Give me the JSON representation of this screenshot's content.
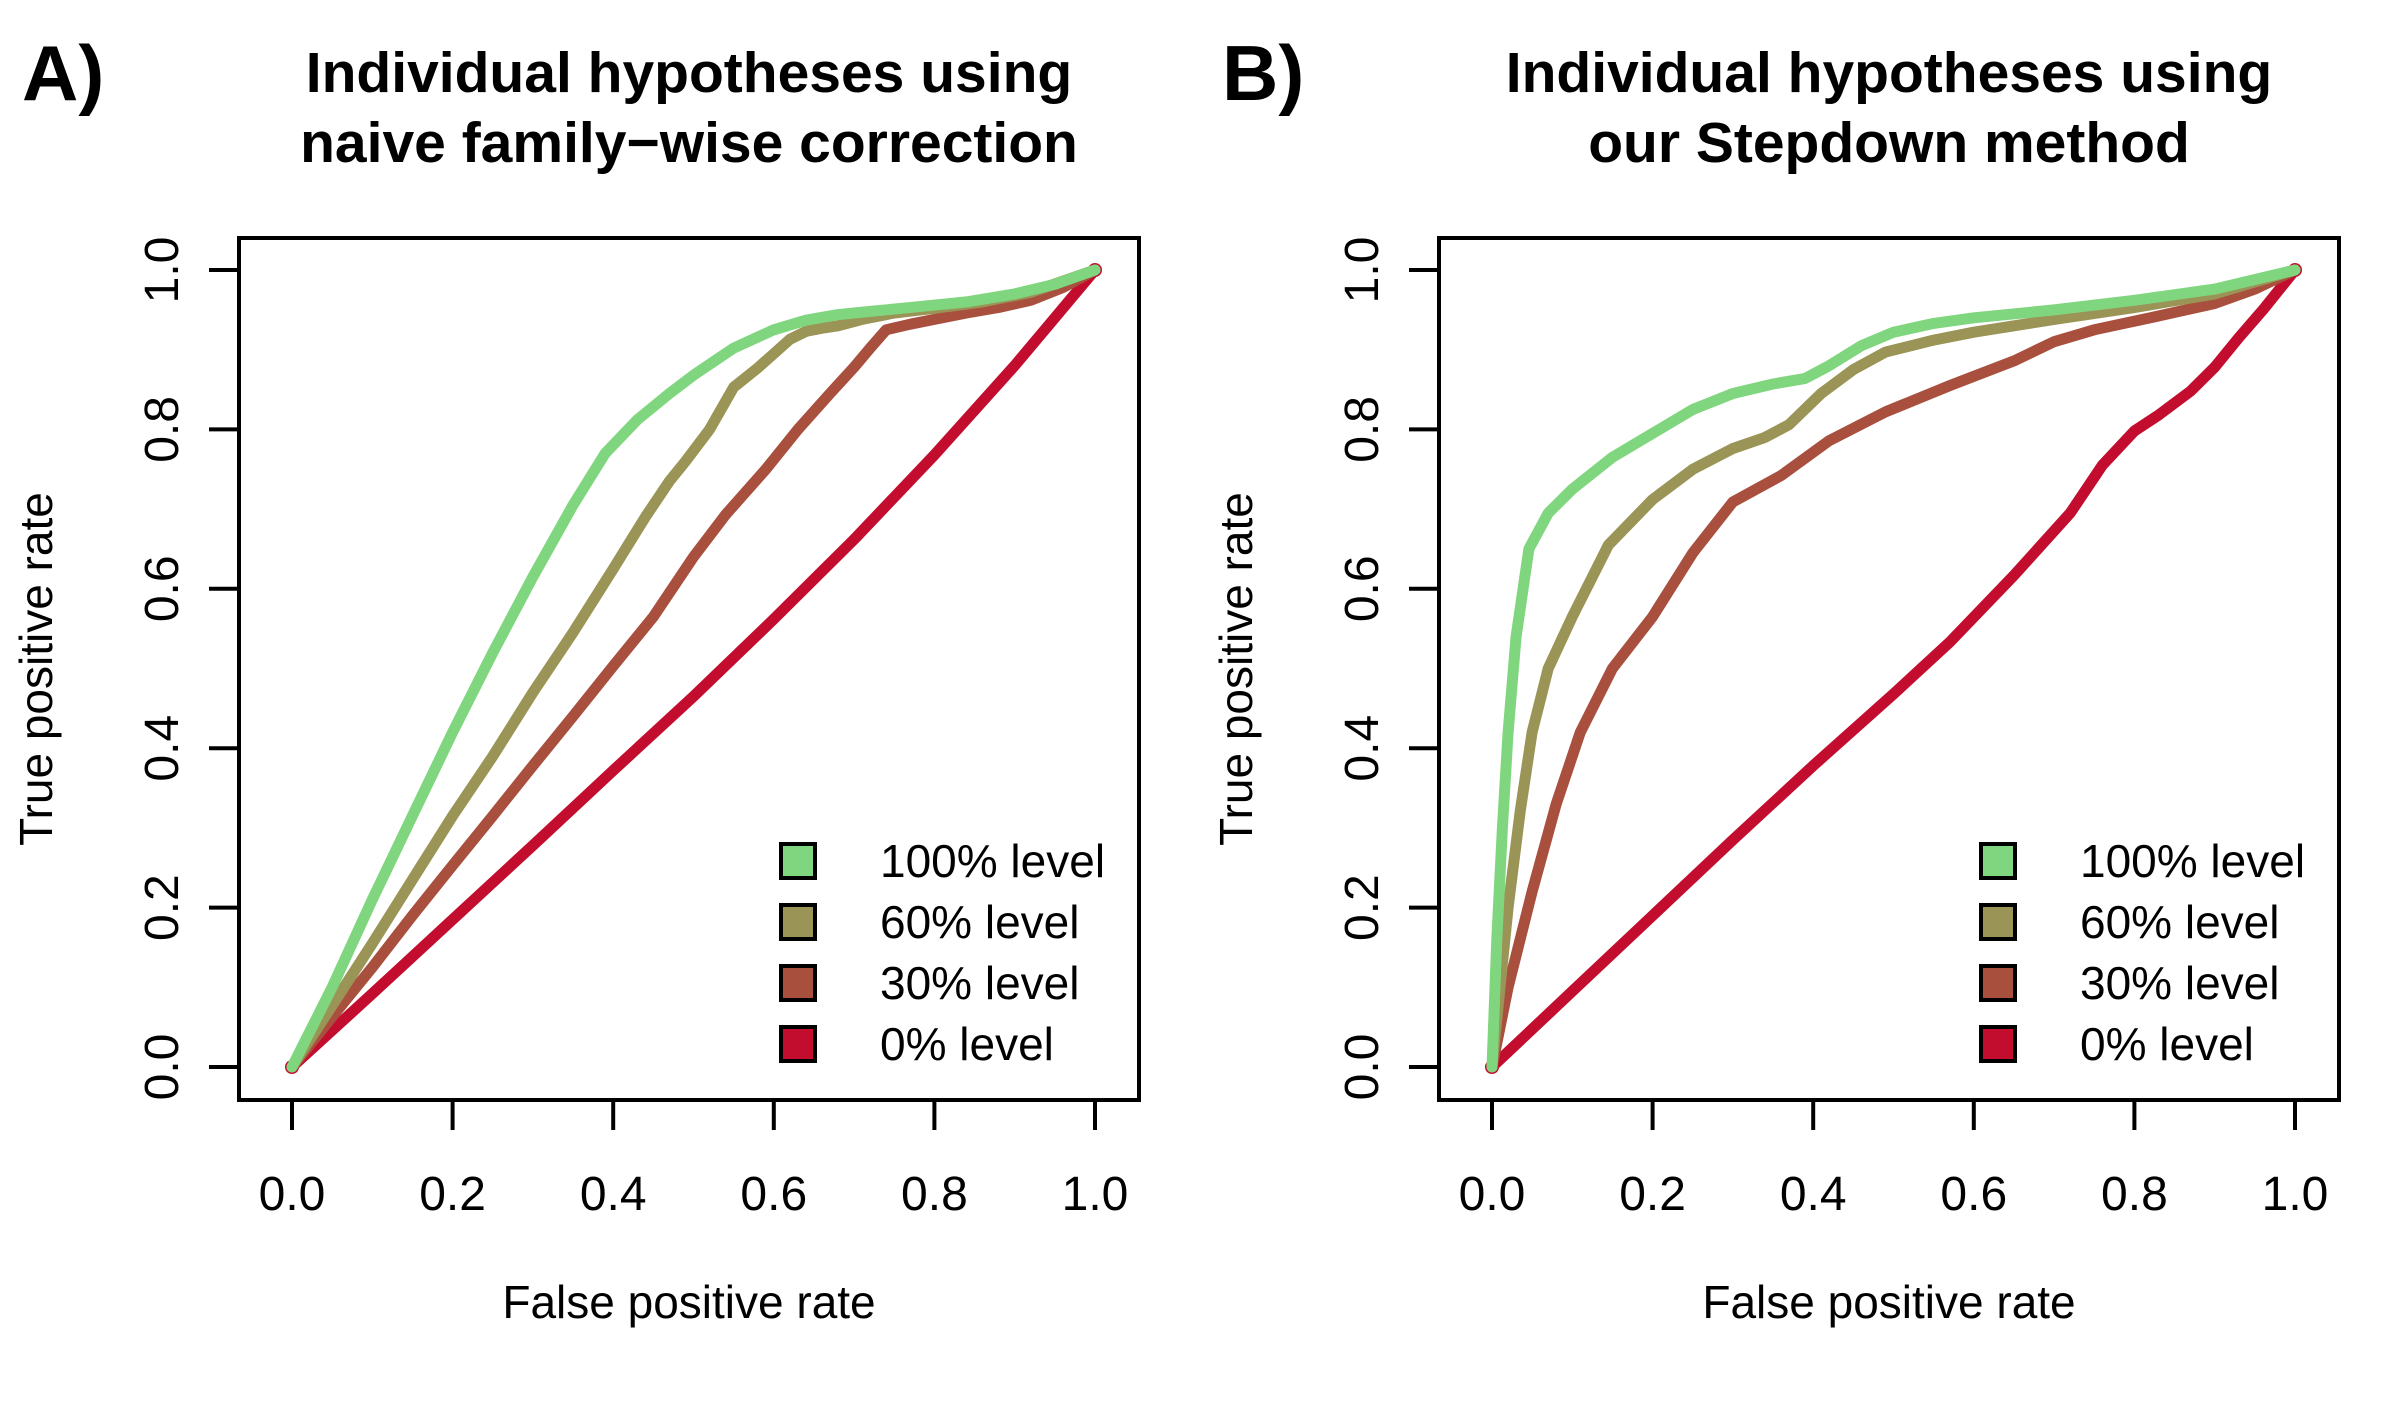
{
  "figure": {
    "background": "#ffffff",
    "box_color": "#000000"
  },
  "chart_data": [
    {
      "type": "line",
      "panel_label": "A)",
      "title_lines": [
        "Individual hypotheses using",
        "naive family−wise correction"
      ],
      "xlabel": "False positive rate",
      "ylabel": "True positive rate",
      "xlim": [
        0,
        1
      ],
      "ylim": [
        0,
        1
      ],
      "grid": false,
      "legend_position": "bottom-right-inside",
      "xticks": [
        "0.0",
        "0.2",
        "0.4",
        "0.6",
        "0.8",
        "1.0"
      ],
      "yticks": [
        "0.0",
        "0.2",
        "0.4",
        "0.6",
        "0.8",
        "1.0"
      ],
      "legend": [
        {
          "label": "100% level",
          "color": "#80D67E"
        },
        {
          "label": "60% level",
          "color": "#9A9456"
        },
        {
          "label": "30% level",
          "color": "#A94F3E"
        },
        {
          "label": "0% level",
          "color": "#C30D2E"
        }
      ],
      "series": [
        {
          "name": "0% level",
          "color": "#C30D2E",
          "points": [
            [
              0,
              0
            ],
            [
              0.1,
              0.092
            ],
            [
              0.2,
              0.185
            ],
            [
              0.3,
              0.278
            ],
            [
              0.4,
              0.372
            ],
            [
              0.5,
              0.465
            ],
            [
              0.6,
              0.562
            ],
            [
              0.7,
              0.662
            ],
            [
              0.8,
              0.768
            ],
            [
              0.9,
              0.88
            ],
            [
              1,
              1
            ]
          ]
        },
        {
          "name": "30% level",
          "color": "#A94F3E",
          "points": [
            [
              0,
              0
            ],
            [
              0.05,
              0.063
            ],
            [
              0.1,
              0.125
            ],
            [
              0.15,
              0.19
            ],
            [
              0.2,
              0.253
            ],
            [
              0.25,
              0.315
            ],
            [
              0.3,
              0.378
            ],
            [
              0.35,
              0.44
            ],
            [
              0.4,
              0.503
            ],
            [
              0.45,
              0.565
            ],
            [
              0.5,
              0.64
            ],
            [
              0.54,
              0.693
            ],
            [
              0.59,
              0.75
            ],
            [
              0.63,
              0.8
            ],
            [
              0.67,
              0.845
            ],
            [
              0.7,
              0.878
            ],
            [
              0.72,
              0.902
            ],
            [
              0.74,
              0.925
            ],
            [
              0.77,
              0.932
            ],
            [
              0.8,
              0.938
            ],
            [
              0.84,
              0.946
            ],
            [
              0.88,
              0.953
            ],
            [
              0.92,
              0.962
            ],
            [
              0.96,
              0.978
            ],
            [
              1,
              1
            ]
          ]
        },
        {
          "name": "60% level",
          "color": "#9A9456",
          "points": [
            [
              0,
              0
            ],
            [
              0.05,
              0.077
            ],
            [
              0.1,
              0.155
            ],
            [
              0.15,
              0.235
            ],
            [
              0.2,
              0.315
            ],
            [
              0.25,
              0.39
            ],
            [
              0.3,
              0.47
            ],
            [
              0.35,
              0.545
            ],
            [
              0.4,
              0.625
            ],
            [
              0.44,
              0.69
            ],
            [
              0.47,
              0.735
            ],
            [
              0.49,
              0.76
            ],
            [
              0.52,
              0.8
            ],
            [
              0.55,
              0.853
            ],
            [
              0.58,
              0.877
            ],
            [
              0.6,
              0.895
            ],
            [
              0.62,
              0.913
            ],
            [
              0.64,
              0.923
            ],
            [
              0.66,
              0.927
            ],
            [
              0.68,
              0.93
            ],
            [
              0.71,
              0.938
            ],
            [
              0.75,
              0.946
            ],
            [
              0.8,
              0.952
            ],
            [
              0.86,
              0.96
            ],
            [
              0.92,
              0.972
            ],
            [
              1,
              1
            ]
          ]
        },
        {
          "name": "100% level",
          "color": "#80D67E",
          "points": [
            [
              0,
              0
            ],
            [
              0.05,
              0.1
            ],
            [
              0.1,
              0.21
            ],
            [
              0.15,
              0.315
            ],
            [
              0.2,
              0.42
            ],
            [
              0.25,
              0.52
            ],
            [
              0.3,
              0.615
            ],
            [
              0.35,
              0.705
            ],
            [
              0.39,
              0.77
            ],
            [
              0.43,
              0.812
            ],
            [
              0.47,
              0.845
            ],
            [
              0.5,
              0.868
            ],
            [
              0.55,
              0.902
            ],
            [
              0.6,
              0.925
            ],
            [
              0.64,
              0.937
            ],
            [
              0.68,
              0.944
            ],
            [
              0.72,
              0.948
            ],
            [
              0.78,
              0.954
            ],
            [
              0.84,
              0.96
            ],
            [
              0.9,
              0.97
            ],
            [
              0.95,
              0.982
            ],
            [
              1,
              1
            ]
          ]
        }
      ]
    },
    {
      "type": "line",
      "panel_label": "B)",
      "title_lines": [
        "Individual hypotheses using",
        "our Stepdown method"
      ],
      "xlabel": "False positive rate",
      "ylabel": "True positive rate",
      "xlim": [
        0,
        1
      ],
      "ylim": [
        0,
        1
      ],
      "grid": false,
      "legend_position": "bottom-right-inside",
      "xticks": [
        "0.0",
        "0.2",
        "0.4",
        "0.6",
        "0.8",
        "1.0"
      ],
      "yticks": [
        "0.0",
        "0.2",
        "0.4",
        "0.6",
        "0.8",
        "1.0"
      ],
      "legend": [
        {
          "label": "100% level",
          "color": "#80D67E"
        },
        {
          "label": "60% level",
          "color": "#9A9456"
        },
        {
          "label": "30% level",
          "color": "#A94F3E"
        },
        {
          "label": "0% level",
          "color": "#C30D2E"
        }
      ],
      "series": [
        {
          "name": "0% level",
          "color": "#C30D2E",
          "points": [
            [
              0,
              0
            ],
            [
              0.1,
              0.095
            ],
            [
              0.2,
              0.19
            ],
            [
              0.3,
              0.285
            ],
            [
              0.4,
              0.378
            ],
            [
              0.5,
              0.468
            ],
            [
              0.57,
              0.533
            ],
            [
              0.65,
              0.617
            ],
            [
              0.72,
              0.695
            ],
            [
              0.76,
              0.755
            ],
            [
              0.8,
              0.798
            ],
            [
              0.83,
              0.818
            ],
            [
              0.87,
              0.848
            ],
            [
              0.9,
              0.878
            ],
            [
              0.93,
              0.915
            ],
            [
              0.96,
              0.95
            ],
            [
              1,
              1
            ]
          ]
        },
        {
          "name": "30% level",
          "color": "#A94F3E",
          "points": [
            [
              0,
              0
            ],
            [
              0.02,
              0.1
            ],
            [
              0.05,
              0.22
            ],
            [
              0.08,
              0.33
            ],
            [
              0.11,
              0.42
            ],
            [
              0.15,
              0.5
            ],
            [
              0.2,
              0.565
            ],
            [
              0.25,
              0.645
            ],
            [
              0.3,
              0.709
            ],
            [
              0.36,
              0.742
            ],
            [
              0.42,
              0.786
            ],
            [
              0.49,
              0.822
            ],
            [
              0.57,
              0.855
            ],
            [
              0.65,
              0.886
            ],
            [
              0.7,
              0.91
            ],
            [
              0.75,
              0.925
            ],
            [
              0.82,
              0.94
            ],
            [
              0.9,
              0.958
            ],
            [
              0.95,
              0.976
            ],
            [
              1,
              1
            ]
          ]
        },
        {
          "name": "60% level",
          "color": "#9A9456",
          "points": [
            [
              0,
              0
            ],
            [
              0.01,
              0.1
            ],
            [
              0.02,
              0.2
            ],
            [
              0.035,
              0.32
            ],
            [
              0.05,
              0.42
            ],
            [
              0.07,
              0.5
            ],
            [
              0.1,
              0.565
            ],
            [
              0.145,
              0.655
            ],
            [
              0.2,
              0.712
            ],
            [
              0.25,
              0.75
            ],
            [
              0.3,
              0.776
            ],
            [
              0.34,
              0.79
            ],
            [
              0.37,
              0.806
            ],
            [
              0.41,
              0.845
            ],
            [
              0.45,
              0.875
            ],
            [
              0.49,
              0.897
            ],
            [
              0.55,
              0.912
            ],
            [
              0.6,
              0.922
            ],
            [
              0.7,
              0.938
            ],
            [
              0.8,
              0.953
            ],
            [
              0.9,
              0.97
            ],
            [
              1,
              1
            ]
          ]
        },
        {
          "name": "100% level",
          "color": "#80D67E",
          "points": [
            [
              0,
              0
            ],
            [
              0.006,
              0.16
            ],
            [
              0.013,
              0.3
            ],
            [
              0.02,
              0.42
            ],
            [
              0.03,
              0.54
            ],
            [
              0.046,
              0.65
            ],
            [
              0.07,
              0.695
            ],
            [
              0.1,
              0.725
            ],
            [
              0.15,
              0.765
            ],
            [
              0.2,
              0.795
            ],
            [
              0.25,
              0.825
            ],
            [
              0.3,
              0.845
            ],
            [
              0.35,
              0.857
            ],
            [
              0.39,
              0.864
            ],
            [
              0.42,
              0.88
            ],
            [
              0.46,
              0.905
            ],
            [
              0.5,
              0.922
            ],
            [
              0.55,
              0.933
            ],
            [
              0.6,
              0.94
            ],
            [
              0.7,
              0.95
            ],
            [
              0.8,
              0.962
            ],
            [
              0.9,
              0.976
            ],
            [
              1,
              1
            ]
          ]
        }
      ]
    }
  ]
}
